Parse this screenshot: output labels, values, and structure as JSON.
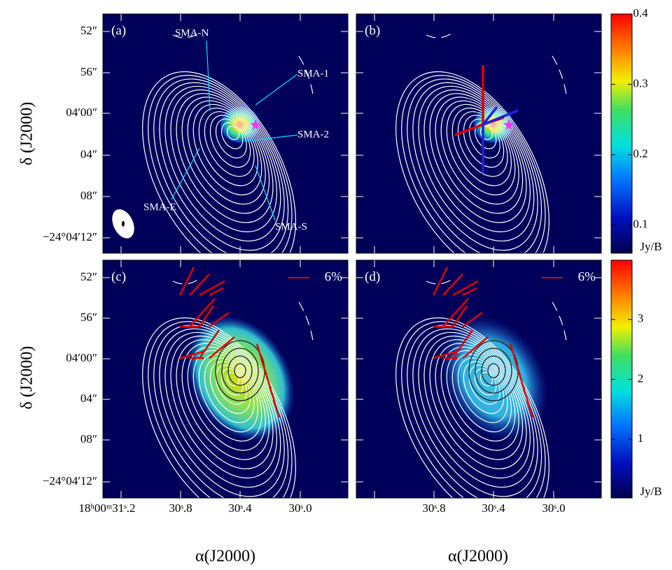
{
  "panels": [
    {
      "label": "(a)"
    },
    {
      "label": "(b)"
    },
    {
      "label": "(c)",
      "legend": "6%"
    },
    {
      "label": "(d)",
      "legend": "6%"
    }
  ],
  "annotations": [
    "SMA-N",
    "SMA-1",
    "SMA-2",
    "SMA-E",
    "SMA-S"
  ],
  "y_axis_label": "δ (J2000)",
  "x_axis_label": "α(J2000)",
  "yticks": [
    "52″",
    "56″",
    "04′00″",
    "04″",
    "08″",
    "−24°04′12″"
  ],
  "xticks": [
    "18ʰ00ᵐ31ˢ.2",
    "30ˢ.8",
    "30ˢ.4",
    "30ˢ.0"
  ],
  "colorbars": [
    {
      "unit": "Jy/B",
      "lim": [
        0.06,
        0.4
      ],
      "ticks": [
        0.1,
        0.2,
        0.3,
        0.4
      ]
    },
    {
      "unit": "Jy/B",
      "lim": [
        0.02,
        3.99
      ],
      "ticks": [
        1,
        2,
        3
      ]
    }
  ]
}
